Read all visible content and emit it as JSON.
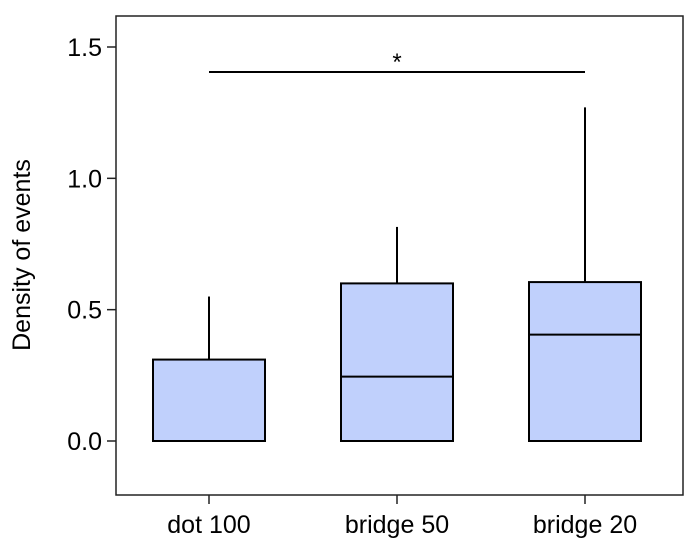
{
  "chart_data": {
    "type": "box",
    "title": "",
    "xlabel": "",
    "ylabel": "Density of events",
    "ylim": [
      -0.2,
      1.7
    ],
    "yticks": [
      {
        "value": 0.0,
        "label": "0.0"
      },
      {
        "value": 0.5,
        "label": "0.5"
      },
      {
        "value": 1.0,
        "label": "1.0"
      },
      {
        "value": 1.5,
        "label": "1.5"
      }
    ],
    "categories": [
      "dot 100",
      "bridge 50",
      "bridge 20"
    ],
    "boxes": [
      {
        "category": "dot 100",
        "whisker_low": 0.0,
        "q1": 0.0,
        "median": 0.0,
        "q3": 0.31,
        "whisker_high": 0.55
      },
      {
        "category": "bridge 50",
        "whisker_low": 0.0,
        "q1": 0.0,
        "median": 0.245,
        "q3": 0.6,
        "whisker_high": 0.815
      },
      {
        "category": "bridge 20",
        "whisker_low": 0.0,
        "q1": 0.0,
        "median": 0.405,
        "q3": 0.605,
        "whisker_high": 1.27
      }
    ],
    "significance": [
      {
        "from": "dot 100",
        "to": "bridge 20",
        "y": 1.405,
        "label": "*"
      }
    ],
    "colors": {
      "box_fill": "#c0d0fc",
      "stroke": "#000000",
      "frame": "#222222"
    },
    "grid": false,
    "legend": "none"
  }
}
